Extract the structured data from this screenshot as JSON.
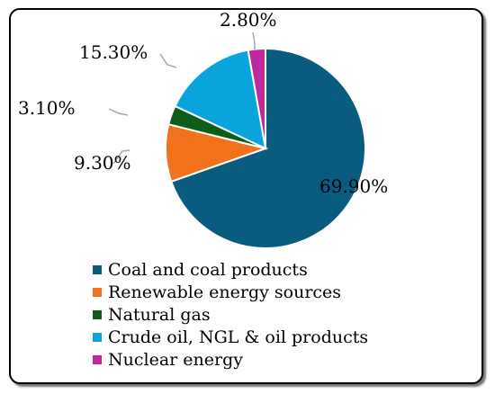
{
  "chart_data": {
    "type": "pie",
    "title": "",
    "legend_position": "bottom",
    "series": [
      {
        "name": "Coal and coal products",
        "value": 69.9,
        "label": "69.90%",
        "color": "#0a5b80"
      },
      {
        "name": "Renewable energy sources",
        "value": 9.3,
        "label": "9.30%",
        "color": "#f2711c"
      },
      {
        "name": "Natural gas",
        "value": 3.1,
        "label": "3.10%",
        "color": "#0e5e1a"
      },
      {
        "name": "Crude oil, NGL & oil products",
        "value": 15.3,
        "label": "15.30%",
        "color": "#0aa4dc"
      },
      {
        "name": "Nuclear energy",
        "value": 2.8,
        "label": "2.80%",
        "color": "#c0289e"
      }
    ]
  }
}
